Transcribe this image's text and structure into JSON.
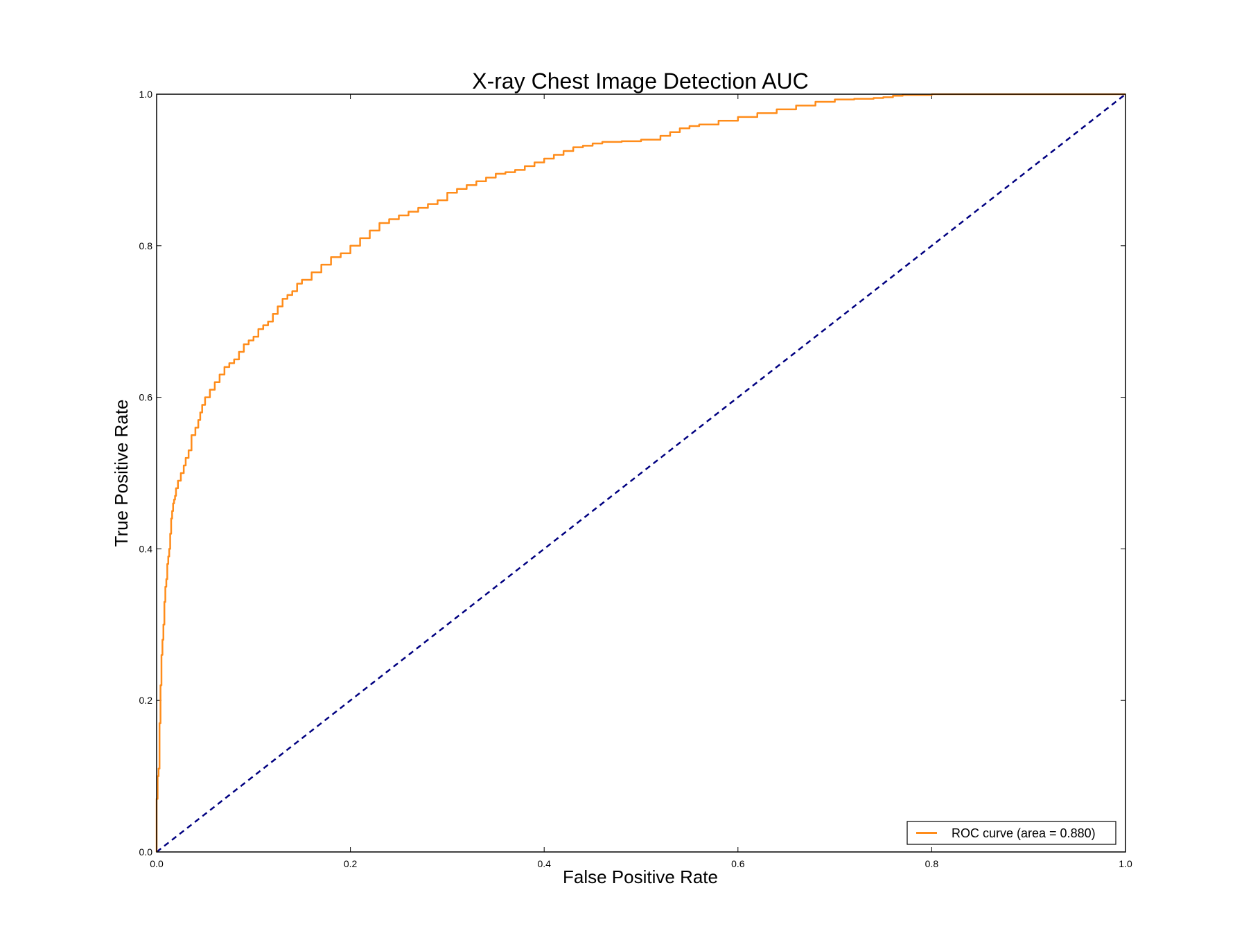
{
  "chart_data": {
    "type": "line",
    "title": "X-ray Chest Image Detection AUC",
    "xlabel": "False Positive Rate",
    "ylabel": "True Positive Rate",
    "xlim": [
      0.0,
      1.0
    ],
    "ylim": [
      0.0,
      1.0
    ],
    "x_ticks": [
      "0.0",
      "0.2",
      "0.4",
      "0.6",
      "0.8",
      "1.0"
    ],
    "y_ticks": [
      "0.0",
      "0.2",
      "0.4",
      "0.6",
      "0.8",
      "1.0"
    ],
    "grid": false,
    "legend_position": "lower-right",
    "series": [
      {
        "name": "ROC curve (area = 0.880)",
        "color": "#ff8c1a",
        "style": "solid",
        "x": [
          0.0,
          0.001,
          0.002,
          0.003,
          0.004,
          0.005,
          0.006,
          0.007,
          0.008,
          0.009,
          0.01,
          0.011,
          0.012,
          0.013,
          0.014,
          0.015,
          0.016,
          0.017,
          0.018,
          0.019,
          0.02,
          0.022,
          0.025,
          0.028,
          0.03,
          0.033,
          0.036,
          0.04,
          0.043,
          0.045,
          0.047,
          0.05,
          0.055,
          0.06,
          0.065,
          0.07,
          0.075,
          0.08,
          0.085,
          0.09,
          0.095,
          0.1,
          0.105,
          0.11,
          0.115,
          0.12,
          0.125,
          0.13,
          0.135,
          0.14,
          0.145,
          0.15,
          0.16,
          0.17,
          0.18,
          0.19,
          0.2,
          0.21,
          0.22,
          0.23,
          0.24,
          0.25,
          0.26,
          0.27,
          0.28,
          0.29,
          0.3,
          0.31,
          0.32,
          0.33,
          0.34,
          0.35,
          0.36,
          0.37,
          0.38,
          0.39,
          0.4,
          0.41,
          0.42,
          0.43,
          0.44,
          0.45,
          0.46,
          0.48,
          0.5,
          0.52,
          0.53,
          0.54,
          0.55,
          0.56,
          0.58,
          0.6,
          0.62,
          0.64,
          0.66,
          0.68,
          0.7,
          0.72,
          0.74,
          0.75,
          0.76,
          0.77,
          0.8,
          0.85,
          0.9,
          0.95,
          0.965,
          1.0
        ],
        "y": [
          0.0,
          0.07,
          0.1,
          0.11,
          0.17,
          0.22,
          0.26,
          0.28,
          0.3,
          0.33,
          0.35,
          0.36,
          0.38,
          0.39,
          0.4,
          0.42,
          0.44,
          0.45,
          0.46,
          0.465,
          0.47,
          0.48,
          0.49,
          0.5,
          0.51,
          0.52,
          0.53,
          0.55,
          0.56,
          0.57,
          0.58,
          0.59,
          0.6,
          0.61,
          0.62,
          0.63,
          0.64,
          0.645,
          0.65,
          0.66,
          0.67,
          0.675,
          0.68,
          0.69,
          0.695,
          0.7,
          0.71,
          0.72,
          0.73,
          0.735,
          0.74,
          0.75,
          0.755,
          0.765,
          0.775,
          0.785,
          0.79,
          0.8,
          0.81,
          0.82,
          0.83,
          0.835,
          0.84,
          0.845,
          0.85,
          0.855,
          0.86,
          0.87,
          0.875,
          0.88,
          0.885,
          0.89,
          0.895,
          0.897,
          0.9,
          0.905,
          0.91,
          0.915,
          0.92,
          0.925,
          0.93,
          0.932,
          0.935,
          0.937,
          0.938,
          0.94,
          0.945,
          0.95,
          0.955,
          0.958,
          0.96,
          0.965,
          0.97,
          0.975,
          0.98,
          0.985,
          0.99,
          0.993,
          0.994,
          0.995,
          0.996,
          0.998,
          0.999,
          1.0,
          1.0,
          1.0,
          1.0,
          1.0
        ]
      },
      {
        "name": "",
        "color": "#000080",
        "style": "dashed",
        "x": [
          0.0,
          1.0
        ],
        "y": [
          0.0,
          1.0
        ]
      }
    ]
  }
}
